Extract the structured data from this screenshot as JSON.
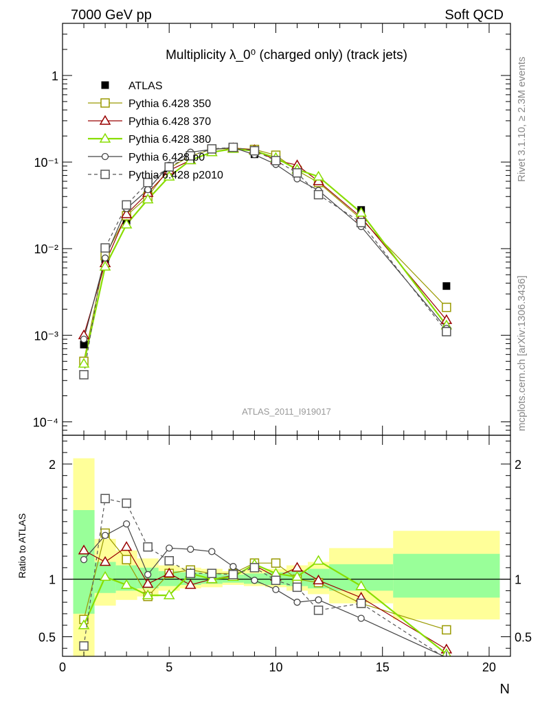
{
  "header": {
    "left": "7000 GeV pp",
    "right": "Soft QCD",
    "rivet": "Rivet 3.1.10, ≥ 2.3M events",
    "mcplots": "mcplots.cern.ch [arXiv:1306.3436]"
  },
  "chart_data": [
    {
      "type": "line",
      "title": "Multiplicity λ_0⁰ (charged only) (track jets)",
      "analysis_label": "ATLAS_2011_I919017",
      "xlabel": "",
      "ylabel": "",
      "yscale": "log",
      "xlim": [
        0,
        21
      ],
      "ylim": [
        7e-05,
        4
      ],
      "y_ticks": [
        {
          "value": 0.0001,
          "label": "10⁻⁴"
        },
        {
          "value": 0.001,
          "label": "10⁻³"
        },
        {
          "value": 0.01,
          "label": "10⁻²"
        },
        {
          "value": 0.1,
          "label": "10⁻¹"
        },
        {
          "value": 1,
          "label": "1"
        }
      ],
      "legend_position": "top-left",
      "x": [
        1,
        2,
        3,
        4,
        5,
        6,
        7,
        8,
        9,
        10,
        11,
        12,
        14,
        18
      ],
      "series": [
        {
          "name": "ATLAS",
          "color": "#000000",
          "marker": "filled-square",
          "values": [
            0.00078,
            0.0075,
            0.021,
            0.045,
            0.08,
            0.112,
            0.135,
            0.142,
            0.123,
            0.105,
            0.082,
            0.058,
            0.028,
            0.0037
          ]
        },
        {
          "name": "Pythia 6.428 350",
          "color": "#999900",
          "marker": "open-square",
          "values": [
            0.0005,
            0.0083,
            0.024,
            0.04,
            0.085,
            0.118,
            0.14,
            0.145,
            0.14,
            0.12,
            0.08,
            0.058,
            0.022,
            0.0021
          ]
        },
        {
          "name": "Pythia 6.428 370",
          "color": "#990000",
          "marker": "open-triangle",
          "values": [
            0.001,
            0.0068,
            0.025,
            0.044,
            0.08,
            0.105,
            0.13,
            0.145,
            0.138,
            0.105,
            0.092,
            0.06,
            0.023,
            0.0015
          ]
        },
        {
          "name": "Pythia 6.428 380",
          "color": "#88dd00",
          "marker": "open-triangle",
          "values": [
            0.00047,
            0.0062,
            0.019,
            0.037,
            0.068,
            0.105,
            0.13,
            0.142,
            0.135,
            0.112,
            0.082,
            0.068,
            0.026,
            0.0013
          ]
        },
        {
          "name": "Pythia 6.428 p0",
          "color": "#444444",
          "marker": "open-circle",
          "values": [
            0.0009,
            0.0078,
            0.029,
            0.048,
            0.092,
            0.13,
            0.14,
            0.147,
            0.122,
            0.094,
            0.064,
            0.047,
            0.018,
            0.0012
          ]
        },
        {
          "name": "Pythia 6.428 p2010",
          "color": "#555555",
          "marker": "open-square",
          "dashed": true,
          "values": [
            0.00035,
            0.0102,
            0.032,
            0.058,
            0.088,
            0.118,
            0.142,
            0.148,
            0.135,
            0.104,
            0.075,
            0.042,
            0.02,
            0.0011
          ]
        }
      ]
    },
    {
      "type": "line",
      "title": "",
      "xlabel": "N",
      "ylabel": "Ratio to ATLAS",
      "xlim": [
        0,
        21
      ],
      "ylim": [
        0.33,
        2.25
      ],
      "x_ticks": [
        0,
        5,
        10,
        15,
        20
      ],
      "y_ticks": [
        0.5,
        1,
        2
      ],
      "grid": false,
      "reference_band": {
        "edges": [
          0.5,
          1.5,
          2.5,
          3.5,
          4.5,
          5.5,
          6.5,
          7.5,
          8.5,
          9.5,
          10.5,
          11.5,
          12.5,
          15.5,
          20.5
        ],
        "yellow": [
          [
            0.33,
            2.05
          ],
          [
            0.77,
            1.35
          ],
          [
            0.82,
            1.25
          ],
          [
            0.85,
            1.18
          ],
          [
            0.9,
            1.12
          ],
          [
            0.92,
            1.1
          ],
          [
            0.93,
            1.09
          ],
          [
            0.95,
            1.07
          ],
          [
            0.94,
            1.08
          ],
          [
            0.93,
            1.09
          ],
          [
            0.9,
            1.12
          ],
          [
            0.87,
            1.15
          ],
          [
            0.79,
            1.27
          ],
          [
            0.65,
            1.42
          ]
        ],
        "green": [
          [
            0.7,
            1.6
          ],
          [
            0.88,
            1.15
          ],
          [
            0.9,
            1.12
          ],
          [
            0.92,
            1.1
          ],
          [
            0.94,
            1.07
          ],
          [
            0.95,
            1.06
          ],
          [
            0.96,
            1.05
          ],
          [
            0.97,
            1.04
          ],
          [
            0.96,
            1.05
          ],
          [
            0.95,
            1.06
          ],
          [
            0.94,
            1.07
          ],
          [
            0.92,
            1.09
          ],
          [
            0.9,
            1.13
          ],
          [
            0.84,
            1.22
          ]
        ]
      },
      "x": [
        1,
        2,
        3,
        4,
        5,
        6,
        7,
        8,
        9,
        10,
        11,
        12,
        14,
        18
      ],
      "series": [
        {
          "name": "Pythia 6.428 350",
          "color": "#999900",
          "marker": "open-square",
          "values": [
            0.65,
            1.4,
            1.17,
            0.85,
            1.05,
            1.08,
            1.05,
            1.05,
            1.14,
            1.14,
            1.0,
            0.97,
            0.79,
            0.56
          ]
        },
        {
          "name": "Pythia 6.428 370",
          "color": "#990000",
          "marker": "open-triangle",
          "values": [
            1.25,
            1.15,
            1.28,
            0.96,
            1.05,
            0.95,
            1.0,
            1.03,
            1.12,
            1.02,
            1.1,
            0.99,
            0.84,
            0.39
          ]
        },
        {
          "name": "Pythia 6.428 380",
          "color": "#88dd00",
          "marker": "open-triangle",
          "values": [
            0.6,
            1.02,
            0.95,
            0.86,
            0.86,
            1.05,
            1.0,
            1.02,
            1.13,
            1.05,
            1.02,
            1.16,
            0.94,
            0.35
          ]
        },
        {
          "name": "Pythia 6.428 p0",
          "color": "#444444",
          "marker": "open-circle",
          "values": [
            1.17,
            1.38,
            1.48,
            1.04,
            1.27,
            1.26,
            1.24,
            1.11,
            0.99,
            0.91,
            0.8,
            0.82,
            0.66,
            0.32
          ]
        },
        {
          "name": "Pythia 6.428 p2010",
          "color": "#555555",
          "marker": "open-square",
          "dashed": true,
          "values": [
            0.42,
            1.7,
            1.66,
            1.28,
            1.16,
            1.05,
            1.05,
            1.04,
            1.1,
            0.99,
            0.93,
            0.73,
            0.79,
            0.31
          ]
        }
      ]
    }
  ]
}
